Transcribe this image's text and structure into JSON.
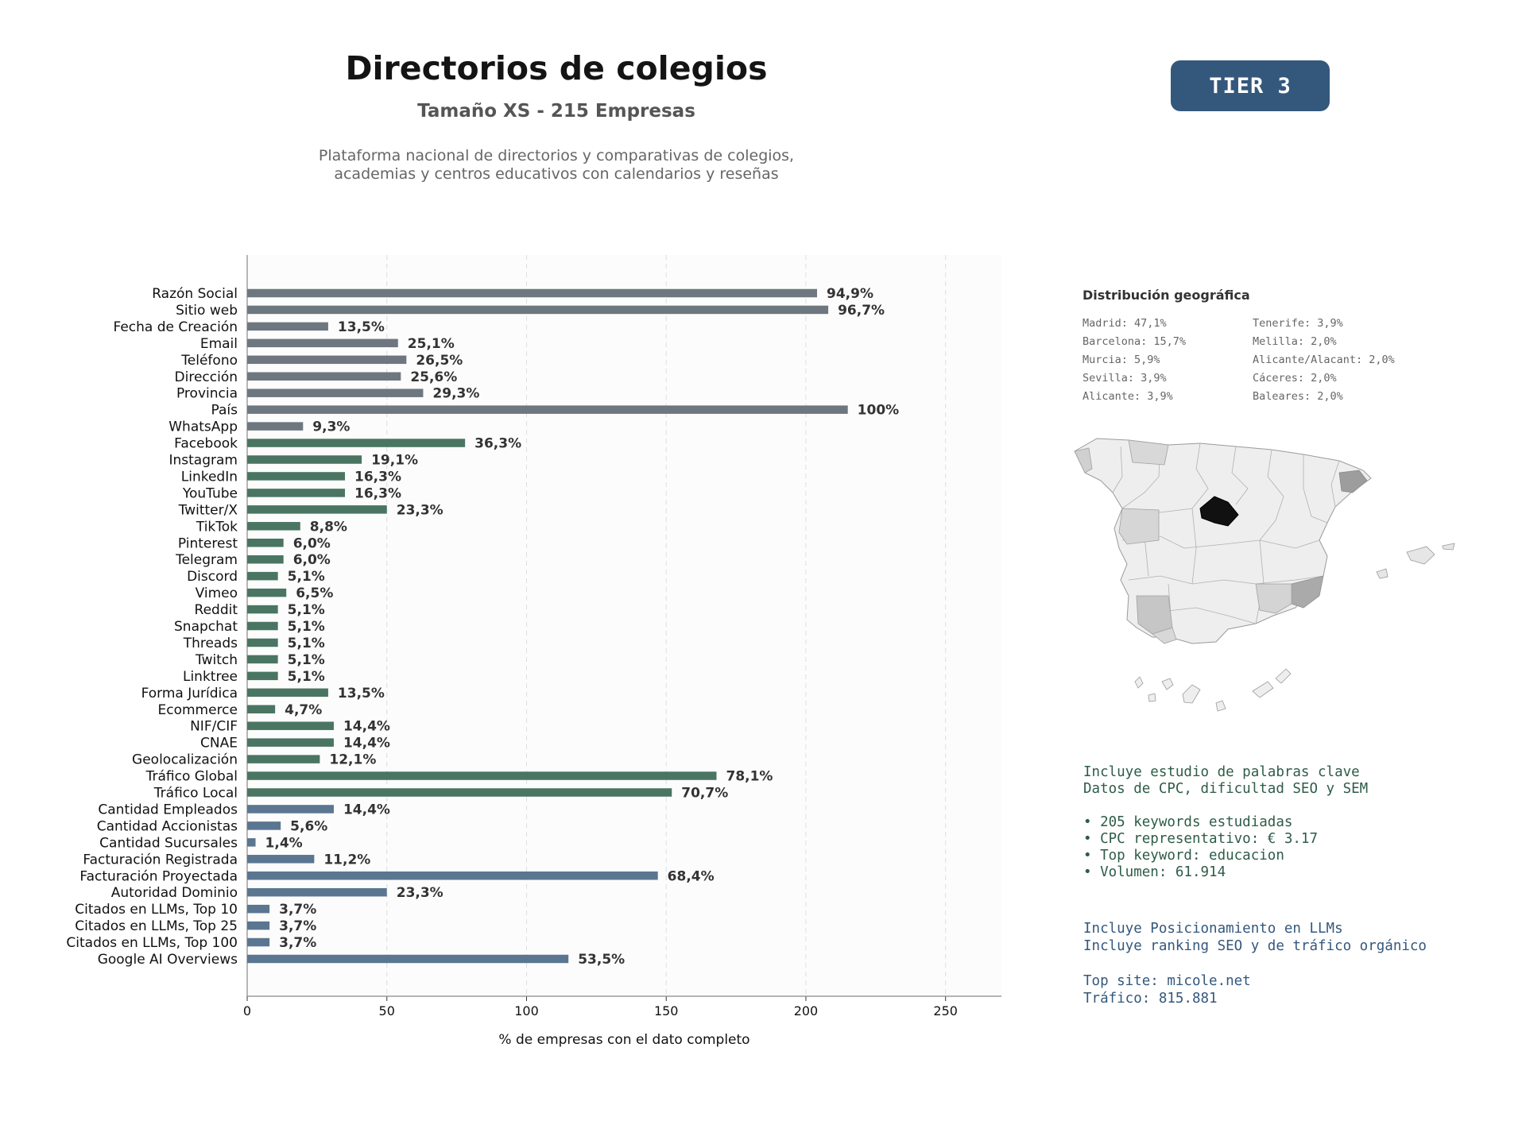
{
  "header": {
    "title": "Directorios de colegios",
    "subtitle": "Tamaño XS - 215 Empresas",
    "description_lines": [
      "Plataforma nacional de directorios y comparativas de colegios,",
      "academias y centros educativos con calendarios y reseñas"
    ],
    "tier_label": "TIER 3"
  },
  "colors": {
    "tier_badge_bg": "#34587c",
    "tier_badge_text": "#ffffff",
    "bar_basic": "#6e7780",
    "bar_social": "#4a7563",
    "bar_business": "#5a7691",
    "keywords_text": "#2e5c48",
    "llm_text": "#34587c",
    "map_highlight": "#111111"
  },
  "chart_data": {
    "type": "bar",
    "orientation": "horizontal",
    "xlabel": "% de empresas con el dato completo",
    "xlim": [
      0,
      270
    ],
    "xticks": [
      0,
      50,
      100,
      150,
      200,
      250
    ],
    "grid": "vertical dashed",
    "categories": [
      "Razón Social",
      "Sitio web",
      "Fecha de Creación",
      "Email",
      "Teléfono",
      "Dirección",
      "Provincia",
      "País",
      "WhatsApp",
      "Facebook",
      "Instagram",
      "LinkedIn",
      "YouTube",
      "Twitter/X",
      "TikTok",
      "Pinterest",
      "Telegram",
      "Discord",
      "Vimeo",
      "Reddit",
      "Snapchat",
      "Threads",
      "Twitch",
      "Linktree",
      "Forma Jurídica",
      "Ecommerce",
      "NIF/CIF",
      "CNAE",
      "Geolocalización",
      "Tráfico Global",
      "Tráfico Local",
      "Cantidad Empleados",
      "Cantidad Accionistas",
      "Cantidad Sucursales",
      "Facturación Registrada",
      "Facturación Proyectada",
      "Autoridad Dominio",
      "Citados en LLMs, Top 10",
      "Citados en LLMs, Top 25",
      "Citados en LLMs, Top 100",
      "Google AI Overviews"
    ],
    "values": [
      204,
      208,
      29,
      54,
      57,
      55,
      63,
      215,
      20,
      78,
      41,
      35,
      35,
      50,
      19,
      13,
      13,
      11,
      14,
      11,
      11,
      11,
      11,
      11,
      29,
      10,
      31,
      31,
      26,
      168,
      152,
      31,
      12,
      3,
      24,
      147,
      50,
      8,
      8,
      8,
      115
    ],
    "labels": [
      "94,9%",
      "96,7%",
      "13,5%",
      "25,1%",
      "26,5%",
      "25,6%",
      "29,3%",
      "100%",
      "9,3%",
      "36,3%",
      "19,1%",
      "16,3%",
      "16,3%",
      "23,3%",
      "8,8%",
      "6,0%",
      "6,0%",
      "5,1%",
      "6,5%",
      "5,1%",
      "5,1%",
      "5,1%",
      "5,1%",
      "5,1%",
      "13,5%",
      "4,7%",
      "14,4%",
      "14,4%",
      "12,1%",
      "78,1%",
      "70,7%",
      "14,4%",
      "5,6%",
      "1,4%",
      "11,2%",
      "68,4%",
      "23,3%",
      "3,7%",
      "3,7%",
      "3,7%",
      "53,5%"
    ],
    "groups": [
      "basic",
      "basic",
      "basic",
      "basic",
      "basic",
      "basic",
      "basic",
      "basic",
      "basic",
      "social",
      "social",
      "social",
      "social",
      "social",
      "social",
      "social",
      "social",
      "social",
      "social",
      "social",
      "social",
      "social",
      "social",
      "social",
      "social",
      "social",
      "social",
      "social",
      "social",
      "social",
      "social",
      "business",
      "business",
      "business",
      "business",
      "business",
      "business",
      "business",
      "business",
      "business",
      "business"
    ]
  },
  "geo": {
    "title": "Distribución geográfica",
    "items": [
      "Madrid: 47,1%",
      "Tenerife: 3,9%",
      "Barcelona: 15,7%",
      "Melilla: 2,0%",
      "Murcia: 5,9%",
      "Alicante/Alacant: 2,0%",
      "Sevilla: 3,9%",
      "Cáceres: 2,0%",
      "Alicante: 3,9%",
      "Baleares: 2,0%"
    ]
  },
  "keywords": {
    "lines": [
      "Incluye estudio de palabras clave",
      "Datos de CPC, dificultad SEO y SEM"
    ],
    "bullets": [
      "• 205 keywords estudiadas",
      "• CPC representativo: € 3.17",
      "• Top keyword: educacion",
      "• Volumen: 61.914"
    ]
  },
  "llm": {
    "lines": [
      "Incluye Posicionamiento en LLMs",
      "Incluye ranking SEO y de tráfico orgánico"
    ],
    "top_lines": [
      "Top site: micole.net",
      "Tráfico: 815.881"
    ]
  }
}
